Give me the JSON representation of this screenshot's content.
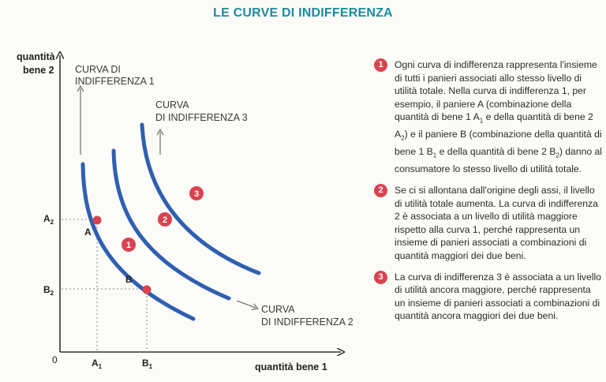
{
  "title": "LE CURVE DI INDIFFERENZA",
  "diagram": {
    "y_axis_label_line1": "quantità",
    "y_axis_label_line2": "bene 2",
    "x_axis_label": "quantità bene 1",
    "origin_label": "0",
    "curve1_label_line1": "CURVA DI",
    "curve1_label_line2": "INDIFFERENZA 1",
    "curve3_label_line1": "CURVA",
    "curve3_label_line2": "DI INDIFFERENZA 3",
    "curve2_label_line1": "CURVA",
    "curve2_label_line2": "DI INDIFFERENZA 2",
    "point_a": "A",
    "point_b": "B",
    "tick_a2": "A",
    "tick_a2_sub": "2",
    "tick_b2": "B",
    "tick_b2_sub": "2",
    "tick_a1": "A",
    "tick_a1_sub": "1",
    "tick_b1": "B",
    "tick_b1_sub": "1",
    "badge1": "1",
    "badge2": "2",
    "badge3": "3"
  },
  "notes": [
    {
      "num": "1",
      "p1": "Ogni curva di indifferenza rappresenta l'insieme di tutti i panieri associati allo stesso livello di utilità totale. Nella curva di indifferenza 1, per esempio, il paniere A (combinazione della quantità di bene 1 A",
      "s1": "1",
      "p2": " e della quantità di bene 2 A",
      "s2": "2",
      "p3": ") e il paniere B (combinazione della quantità di bene 1 B",
      "s3": "1",
      "p4": " e della quantità di bene 2 B",
      "s4": "2",
      "p5": ") danno al consumatore lo stesso livello di utilità totale."
    },
    {
      "num": "2",
      "text": "Se ci si allontana dall'origine degli assi, il livello di utilità totale aumenta. La curva di indifferenza 2 è associata a un livello di utilità maggiore rispetto alla curva 1, perché rappresenta un insieme di panieri associati a combinazioni di quantità maggiori dei due beni."
    },
    {
      "num": "3",
      "text": "La curva di indifferenza 3 è associata a un livello di utilità ancora maggiore, perché rappresenta un insieme di panieri associati a combinazioni di quantità ancora maggiori dei due beni."
    }
  ],
  "colors": {
    "title": "#1d8aa0",
    "curve": "#2f5fb0",
    "accent": "#d9434f",
    "axis": "#333333"
  }
}
